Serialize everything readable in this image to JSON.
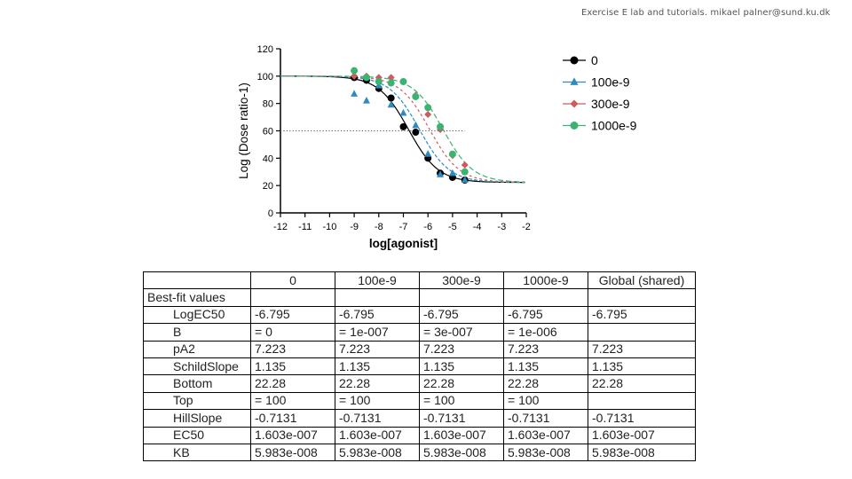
{
  "header": "Exercise E lab and tutorials. mikael palner@sund.ku.dk",
  "chart_data": {
    "type": "scatter",
    "title": "",
    "xlabel": "log[agonist]",
    "ylabel": "Log (Dose ratio-1)",
    "xlim": [
      -12,
      -2
    ],
    "ylim": [
      0,
      120
    ],
    "x_ticks": [
      "-12",
      "-11",
      "-10",
      "-9",
      "-8",
      "-7",
      "-6",
      "-5",
      "-4",
      "-3",
      "-2"
    ],
    "y_ticks": [
      "0",
      "20",
      "40",
      "60",
      "80",
      "100",
      "120"
    ],
    "reference_line_y": 60,
    "legend_position": "right",
    "fit": {
      "top": 100,
      "bottom": 22.28,
      "logEC50": -6.795,
      "hillslope": -0.7131,
      "schild_slope": 1.135,
      "pA2": 7.223
    },
    "series": [
      {
        "name": "0",
        "marker": "circle",
        "color": "#000000",
        "antagonist": 0,
        "x": [
          -9,
          -8.5,
          -8,
          -7.5,
          -7,
          -6.5,
          -6,
          -5.5,
          -5,
          -4.5
        ],
        "y": [
          99,
          97,
          91,
          84,
          63,
          59,
          40,
          29,
          26,
          24
        ]
      },
      {
        "name": "100e-9",
        "marker": "triangle",
        "color": "#2e8bc0",
        "antagonist": 1e-07,
        "x": [
          -9,
          -8.5,
          -8,
          -7.5,
          -7,
          -6.5,
          -6,
          -5.5,
          -5,
          -4.5
        ],
        "y": [
          87,
          82,
          93,
          79,
          73,
          64,
          43,
          28,
          29,
          24
        ]
      },
      {
        "name": "300e-9",
        "marker": "diamond",
        "color": "#cd5c5c",
        "antagonist": 3e-07,
        "x": [
          -9,
          -8.5,
          -8,
          -7.5,
          -7,
          -6.5,
          -6,
          -5.5,
          -5,
          -4.5
        ],
        "y": [
          100,
          100,
          99,
          99,
          96,
          86,
          72,
          61,
          42,
          35
        ]
      },
      {
        "name": "1000e-9",
        "marker": "circle",
        "color": "#3cb371",
        "antagonist": 1e-06,
        "x": [
          -9,
          -8.5,
          -8,
          -7.5,
          -7,
          -6.5,
          -6,
          -5.5,
          -5,
          -4.5
        ],
        "y": [
          104,
          99,
          96,
          95,
          96,
          85,
          77,
          63,
          43,
          30
        ]
      }
    ]
  },
  "table": {
    "headers": [
      "",
      "0",
      "100e-9",
      "300e-9",
      "1000e-9",
      "Global (shared)"
    ],
    "section_label": "Best-fit values",
    "rows": [
      {
        "label": "LogEC50",
        "values": [
          "-6.795",
          "-6.795",
          "-6.795",
          "-6.795",
          "-6.795"
        ]
      },
      {
        "label": "B",
        "values": [
          "= 0",
          "= 1e-007",
          "= 3e-007",
          "= 1e-006",
          ""
        ]
      },
      {
        "label": "pA2",
        "values": [
          "7.223",
          "7.223",
          "7.223",
          "7.223",
          "7.223"
        ]
      },
      {
        "label": "SchildSlope",
        "values": [
          "1.135",
          "1.135",
          "1.135",
          "1.135",
          "1.135"
        ]
      },
      {
        "label": "Bottom",
        "values": [
          "22.28",
          "22.28",
          "22.28",
          "22.28",
          "22.28"
        ]
      },
      {
        "label": "Top",
        "values": [
          "= 100",
          "= 100",
          "= 100",
          "= 100",
          ""
        ]
      },
      {
        "label": "HillSlope",
        "values": [
          "-0.7131",
          "-0.7131",
          "-0.7131",
          "-0.7131",
          "-0.7131"
        ]
      },
      {
        "label": "EC50",
        "values": [
          "1.603e-007",
          "1.603e-007",
          "1.603e-007",
          "1.603e-007",
          "1.603e-007"
        ]
      },
      {
        "label": "KB",
        "values": [
          "5.983e-008",
          "5.983e-008",
          "5.983e-008",
          "5.983e-008",
          "5.983e-008"
        ]
      }
    ]
  }
}
